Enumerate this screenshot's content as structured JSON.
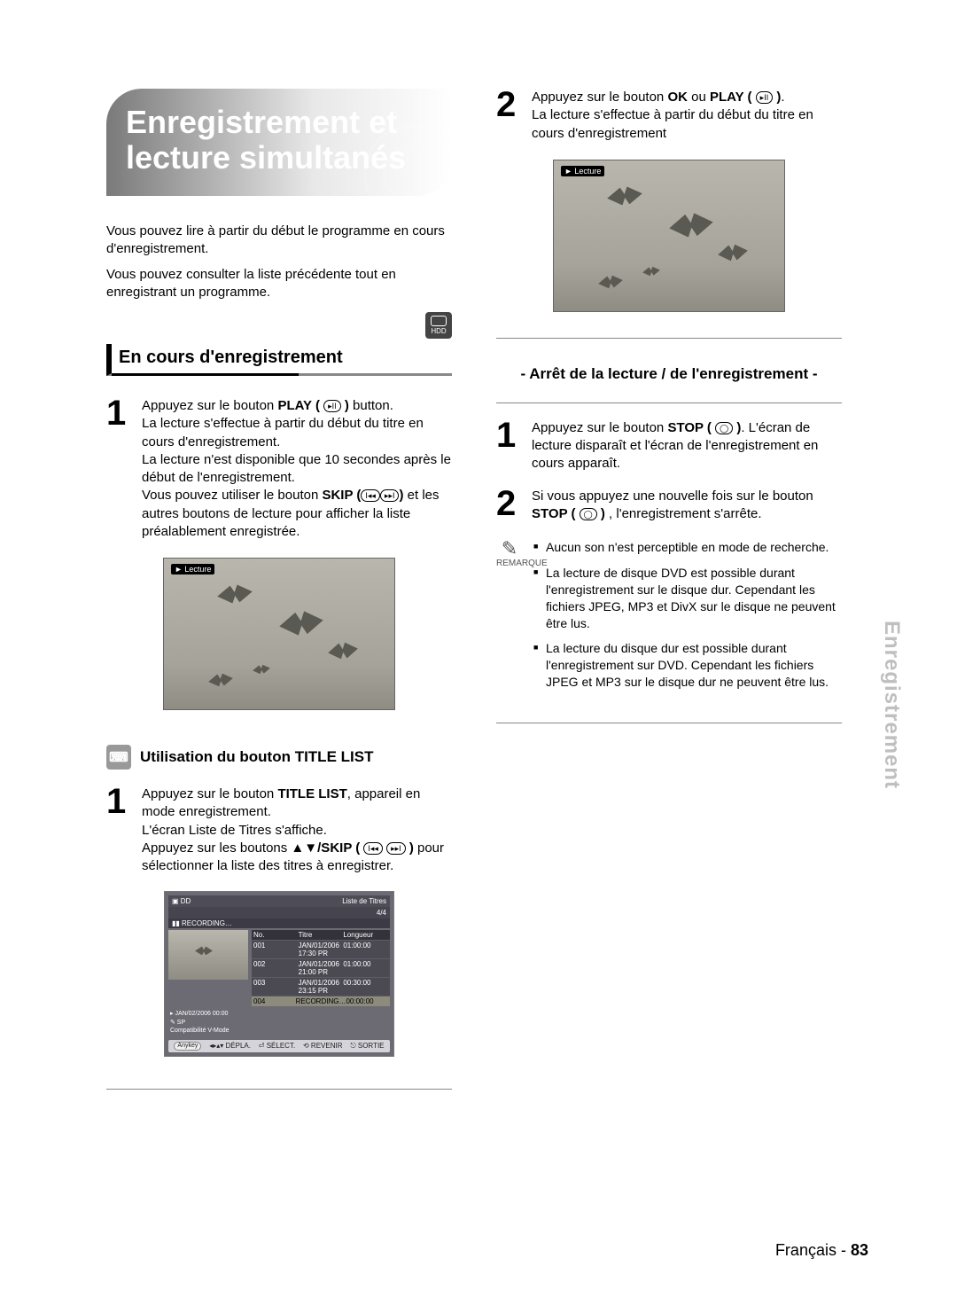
{
  "page": {
    "language": "Français",
    "number": "83",
    "side_tab": "Enregistrement"
  },
  "heading": {
    "line1": "Enregistrement et",
    "line2": "lecture simultanés"
  },
  "intro": {
    "p1": "Vous pouvez lire à partir du début le programme en cours d'enregistrement.",
    "p2": "Vous pouvez consulter la liste précédente tout en enregistrant un programme."
  },
  "hdd_icon_label": "HDD",
  "section1": {
    "title": "En cours d'enregistrement",
    "step1_num": "1",
    "step1_html": "Appuyez sur le bouton <b>PLAY (</b> <span class='btn-circ'>▸II</span> <b>)</b> button.<br>La lecture s'effectue à partir du début du titre en cours d'enregistrement.<br>La lecture n'est disponible que 10 secondes après le début de l'enregistrement.<br>Vous pouvez utiliser le bouton <b>SKIP (</b><span class='btn-circ'>I◂◂</span><span class='btn-circ'>▸▸I</span><b>)</b> et les autres boutons de lecture pour afficher la liste préalablement enregistrée."
  },
  "screenshot": {
    "tag": "► Lecture"
  },
  "section_tl": {
    "title": "Utilisation du bouton TITLE LIST",
    "step1_num": "1",
    "step1_html": "Appuyez sur le bouton <b>TITLE LIST</b>, appareil en mode enregistrement.<br>L'écran Liste de Titres s'affiche.<br>Appuyez sur les boutons ▲▼<b>/SKIP (</b> <span class='btn-circ'>I◂◂</span> <span class='btn-circ'>▸▸I</span> <b>)</b> pour sélectionner la liste des titres à enregistrer."
  },
  "title_list_shot": {
    "hdr_left": "▣ DD",
    "hdr_right": "Liste de Titres",
    "sub_right": "4/4",
    "recording": "▮▮ RECORDING…",
    "cols": {
      "no": "No.",
      "title": "Titre",
      "len": "Longueur"
    },
    "rows": [
      {
        "no": "001",
        "title": "JAN/01/2006 17:30 PR",
        "len": "01:00:00"
      },
      {
        "no": "002",
        "title": "JAN/01/2006 21:00 PR",
        "len": "01:00:00"
      },
      {
        "no": "003",
        "title": "JAN/01/2006 23:15 PR",
        "len": "00:30:00"
      },
      {
        "no": "004",
        "title": "RECORDING…",
        "len": "00:00:00",
        "sel": true
      }
    ],
    "meta1": "▸ JAN/02/2006 00:00",
    "meta2": "✎  SP",
    "meta3": "Compatibilité V-Mode",
    "foot": {
      "anykey": "Anykey",
      "f1": "◂▸▴▾ DÉPLA.",
      "f2": "⏎ SÉLECT.",
      "f3": "⟲ REVENIR",
      "f4": "⎋ SORTIE"
    }
  },
  "right": {
    "step2_num": "2",
    "step2_html": "Appuyez sur le bouton <b>OK</b> ou <b>PLAY (</b> <span class='btn-circ'>▸II</span> <b>)</b>.<br>La lecture s'effectue à partir du début du titre en cours d'enregistrement",
    "sub_title": "- Arrêt de la lecture / de l'enregistrement -",
    "stop1_num": "1",
    "stop1_html": "Appuyez sur le bouton <b>STOP (</b> <span class='btn-circ'>◯</span> <b>)</b>. L'écran de lecture disparaît et l'écran de l'enregistrement en cours apparaît.",
    "stop2_num": "2",
    "stop2_html": "Si vous appuyez une nouvelle fois sur le bouton <b>STOP (</b> <span class='btn-circ'>◯</span> <b>)</b> , l'enregistrement s'arrête.",
    "note_label": "REMARQUE",
    "notes": [
      "Aucun son n'est perceptible en mode de recherche.",
      "La lecture de disque DVD est possible durant l'enregistrement sur le disque dur. Cependant les fichiers JPEG, MP3 et DivX sur le disque ne peuvent être lus.",
      "La lecture du disque dur est possible durant l'enregistrement sur DVD.\nCependant les fichiers JPEG et MP3 sur le disque dur ne peuvent être lus."
    ]
  },
  "colors": {
    "heading_bg_start": "#7a7a7a",
    "heading_bg_end": "#ffffff",
    "rule": "#888888",
    "side_tab": "#bfbfbf"
  }
}
